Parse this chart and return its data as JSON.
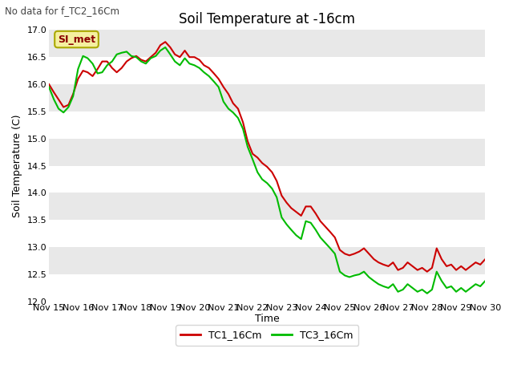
{
  "title": "Soil Temperature at -16cm",
  "xlabel": "Time",
  "ylabel": "Soil Temperature (C)",
  "top_left_text": "No data for f_TC2_16Cm",
  "annotation_box": "SI_met",
  "ylim": [
    12.0,
    17.0
  ],
  "yticks": [
    12.0,
    12.5,
    13.0,
    13.5,
    14.0,
    14.5,
    15.0,
    15.5,
    16.0,
    16.5,
    17.0
  ],
  "xtick_labels": [
    "Nov 15",
    "Nov 16",
    "Nov 17",
    "Nov 18",
    "Nov 19",
    "Nov 20",
    "Nov 21",
    "Nov 22",
    "Nov 23",
    "Nov 24",
    "Nov 25",
    "Nov 26",
    "Nov 27",
    "Nov 28",
    "Nov 29",
    "Nov 30"
  ],
  "bg_color": "#e8e8e8",
  "band_color": "#f0f0f0",
  "fig_color": "#ffffff",
  "line1_color": "#cc0000",
  "line2_color": "#00bb00",
  "line1_label": "TC1_16Cm",
  "line2_label": "TC3_16Cm",
  "line_width": 1.5,
  "tc1_x": [
    0,
    0.17,
    0.33,
    0.5,
    0.67,
    0.83,
    1.0,
    1.17,
    1.33,
    1.5,
    1.67,
    1.83,
    2.0,
    2.17,
    2.33,
    2.5,
    2.67,
    2.83,
    3.0,
    3.17,
    3.33,
    3.5,
    3.67,
    3.83,
    4.0,
    4.17,
    4.33,
    4.5,
    4.67,
    4.83,
    5.0,
    5.17,
    5.33,
    5.5,
    5.67,
    5.83,
    6.0,
    6.17,
    6.33,
    6.5,
    6.67,
    6.83,
    7.0,
    7.17,
    7.33,
    7.5,
    7.67,
    7.83,
    8.0,
    8.17,
    8.33,
    8.5,
    8.67,
    8.83,
    9.0,
    9.17,
    9.33,
    9.5,
    9.67,
    9.83,
    10.0,
    10.17,
    10.33,
    10.5,
    10.67,
    10.83,
    11.0,
    11.17,
    11.33,
    11.5,
    11.67,
    11.83,
    12.0,
    12.17,
    12.33,
    12.5,
    12.67,
    12.83,
    13.0,
    13.17,
    13.33,
    13.5,
    13.67,
    13.83,
    14.0,
    14.17,
    14.33,
    14.5,
    14.67,
    14.83,
    15.0
  ],
  "tc1_y": [
    16.0,
    15.85,
    15.72,
    15.58,
    15.62,
    15.82,
    16.1,
    16.25,
    16.22,
    16.15,
    16.28,
    16.42,
    16.42,
    16.3,
    16.22,
    16.3,
    16.42,
    16.48,
    16.52,
    16.45,
    16.42,
    16.5,
    16.58,
    16.72,
    16.78,
    16.68,
    16.55,
    16.5,
    16.62,
    16.5,
    16.5,
    16.45,
    16.35,
    16.3,
    16.2,
    16.1,
    15.95,
    15.82,
    15.65,
    15.55,
    15.3,
    14.95,
    14.72,
    14.65,
    14.55,
    14.48,
    14.38,
    14.22,
    13.95,
    13.82,
    13.72,
    13.65,
    13.58,
    13.75,
    13.75,
    13.62,
    13.48,
    13.38,
    13.28,
    13.18,
    12.95,
    12.88,
    12.85,
    12.88,
    12.92,
    12.98,
    12.88,
    12.78,
    12.72,
    12.68,
    12.65,
    12.72,
    12.58,
    12.62,
    12.72,
    12.65,
    12.58,
    12.62,
    12.55,
    12.62,
    12.98,
    12.78,
    12.65,
    12.68,
    12.58,
    12.65,
    12.58,
    12.65,
    12.72,
    12.68,
    12.78
  ],
  "tc3_x": [
    0,
    0.17,
    0.33,
    0.5,
    0.67,
    0.83,
    1.0,
    1.17,
    1.33,
    1.5,
    1.67,
    1.83,
    2.0,
    2.17,
    2.33,
    2.5,
    2.67,
    2.83,
    3.0,
    3.17,
    3.33,
    3.5,
    3.67,
    3.83,
    4.0,
    4.17,
    4.33,
    4.5,
    4.67,
    4.83,
    5.0,
    5.17,
    5.33,
    5.5,
    5.67,
    5.83,
    6.0,
    6.17,
    6.33,
    6.5,
    6.67,
    6.83,
    7.0,
    7.17,
    7.33,
    7.5,
    7.67,
    7.83,
    8.0,
    8.17,
    8.33,
    8.5,
    8.67,
    8.83,
    9.0,
    9.17,
    9.33,
    9.5,
    9.67,
    9.83,
    10.0,
    10.17,
    10.33,
    10.5,
    10.67,
    10.83,
    11.0,
    11.17,
    11.33,
    11.5,
    11.67,
    11.83,
    12.0,
    12.17,
    12.33,
    12.5,
    12.67,
    12.83,
    13.0,
    13.17,
    13.33,
    13.5,
    13.67,
    13.83,
    14.0,
    14.17,
    14.33,
    14.5,
    14.67,
    14.83,
    15.0
  ],
  "tc3_y": [
    15.95,
    15.72,
    15.55,
    15.48,
    15.58,
    15.78,
    16.28,
    16.52,
    16.48,
    16.38,
    16.2,
    16.22,
    16.35,
    16.42,
    16.55,
    16.58,
    16.6,
    16.52,
    16.5,
    16.42,
    16.38,
    16.48,
    16.52,
    16.62,
    16.68,
    16.55,
    16.42,
    16.35,
    16.48,
    16.38,
    16.35,
    16.3,
    16.22,
    16.15,
    16.05,
    15.95,
    15.68,
    15.55,
    15.48,
    15.38,
    15.18,
    14.85,
    14.62,
    14.38,
    14.25,
    14.18,
    14.08,
    13.92,
    13.55,
    13.42,
    13.32,
    13.22,
    13.15,
    13.48,
    13.45,
    13.32,
    13.18,
    13.08,
    12.98,
    12.88,
    12.55,
    12.48,
    12.45,
    12.48,
    12.5,
    12.55,
    12.45,
    12.38,
    12.32,
    12.28,
    12.25,
    12.32,
    12.18,
    12.22,
    12.32,
    12.25,
    12.18,
    12.22,
    12.15,
    12.22,
    12.55,
    12.38,
    12.25,
    12.28,
    12.18,
    12.25,
    12.18,
    12.25,
    12.32,
    12.28,
    12.38
  ],
  "title_fontsize": 12,
  "axis_label_fontsize": 9,
  "tick_fontsize": 8,
  "legend_fontsize": 9
}
